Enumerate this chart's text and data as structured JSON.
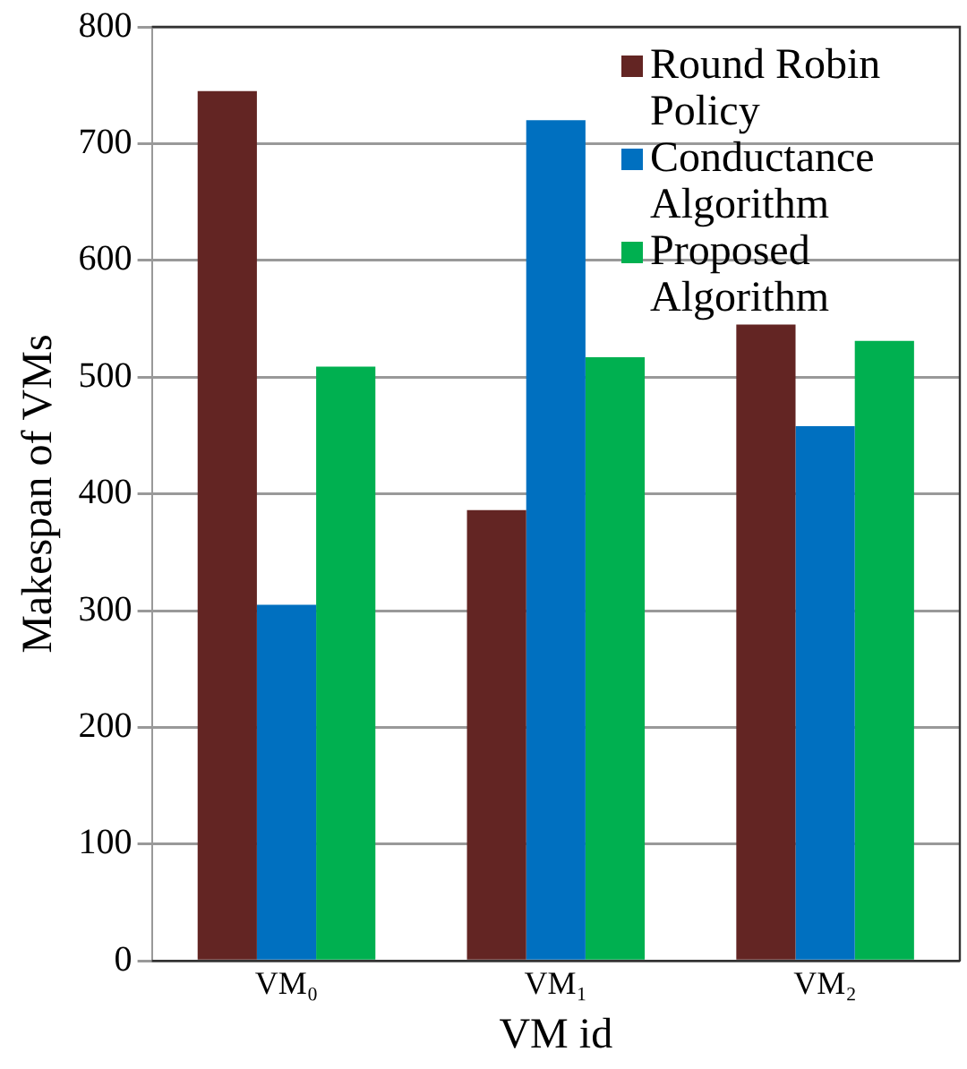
{
  "chart_data": {
    "type": "bar",
    "xlabel": "VM id",
    "ylabel": "Makespan of VMs",
    "categories": [
      "VM₀",
      "VM₁",
      "VM₂"
    ],
    "series": [
      {
        "name": "Round Robin Policy",
        "color": "#632523",
        "values": [
          745,
          386,
          545
        ]
      },
      {
        "name": "Conductance Algorithm",
        "color": "#0070c0",
        "values": [
          305,
          720,
          458
        ]
      },
      {
        "name": "Proposed Algorithm",
        "color": "#00b050",
        "values": [
          509,
          517,
          531
        ]
      }
    ],
    "ylim": [
      0,
      800
    ],
    "yticks": [
      0,
      100,
      200,
      300,
      400,
      500,
      600,
      700,
      800
    ],
    "grid": "y",
    "legend": "top right"
  }
}
